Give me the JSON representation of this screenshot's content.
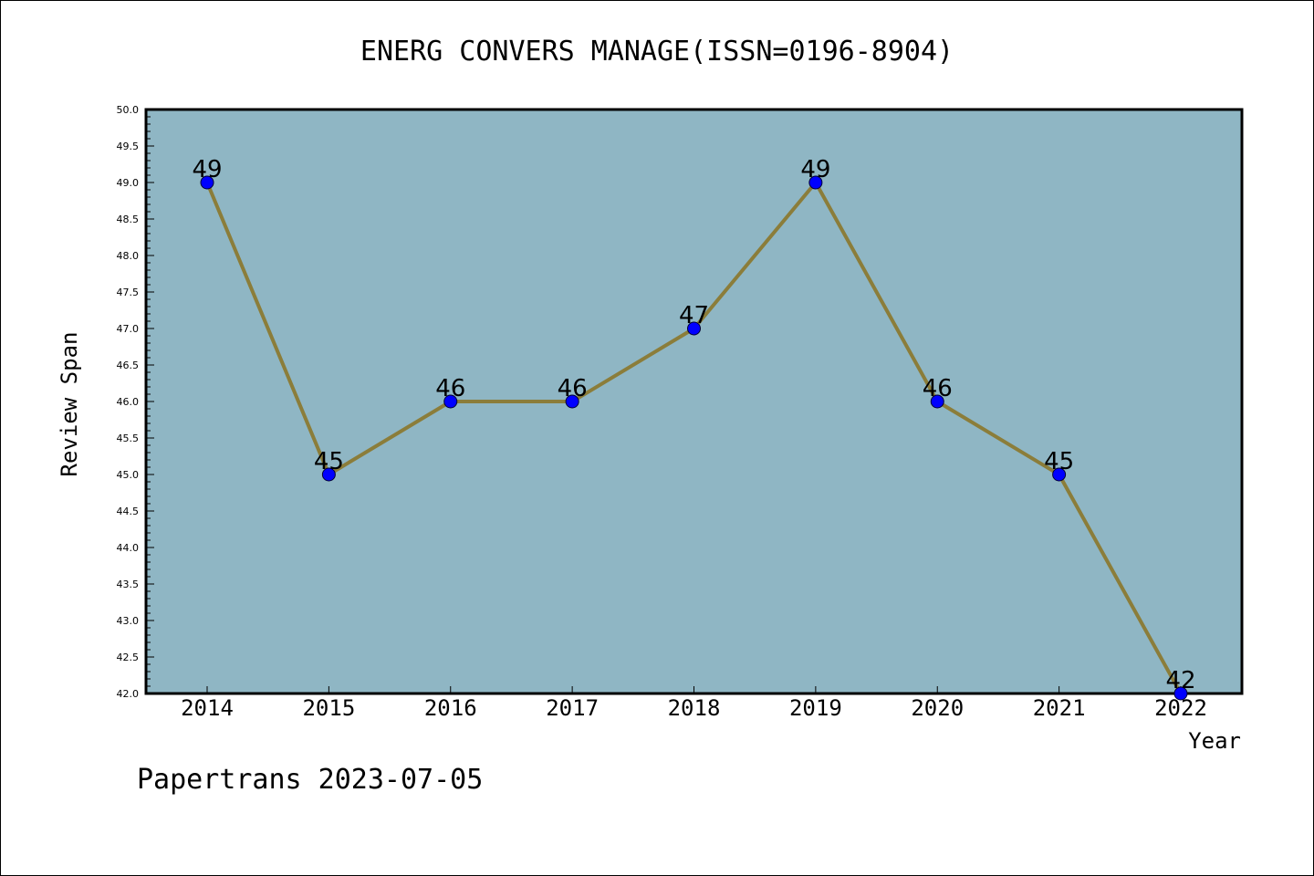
{
  "chart_data": {
    "type": "line",
    "title": "ENERG CONVERS MANAGE(ISSN=0196-8904)",
    "xlabel": "Year",
    "ylabel": "Review Span",
    "categories": [
      "2014",
      "2015",
      "2016",
      "2017",
      "2018",
      "2019",
      "2020",
      "2021",
      "2022"
    ],
    "series": [
      {
        "values": [
          49,
          45,
          46,
          46,
          47,
          49,
          46,
          45,
          42
        ]
      }
    ],
    "ylim": [
      42.0,
      50.0
    ],
    "y_ticks": [
      "42.0",
      "42.5",
      "43.0",
      "43.5",
      "44.0",
      "44.5",
      "45.0",
      "45.5",
      "46.0",
      "46.5",
      "47.0",
      "47.5",
      "48.0",
      "48.5",
      "49.0",
      "49.5",
      "50.0"
    ],
    "data_labels": [
      "49",
      "45",
      "46",
      "46",
      "47",
      "49",
      "46",
      "45",
      "42"
    ],
    "grid": false,
    "legend": "none",
    "colors": {
      "plot_background": "#8fb6c4",
      "line": "#8b7d3a",
      "marker": "#0000ff",
      "axis": "#000000"
    }
  },
  "footer": {
    "watermark": "Papertrans 2023-07-05"
  }
}
